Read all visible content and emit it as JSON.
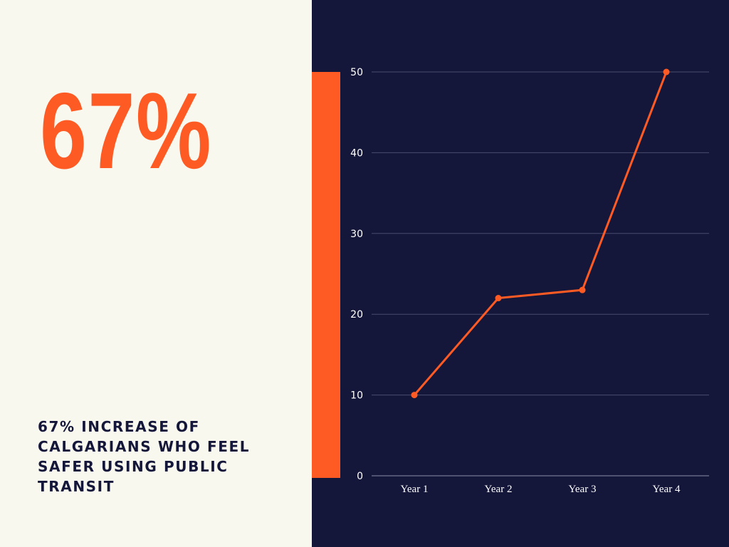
{
  "stat": {
    "value": "67%",
    "caption": "67% INCREASE OF CALGARIANS WHO FEEL SAFER USING PUBLIC TRANSIT"
  },
  "colors": {
    "accent": "#fe5a24",
    "panel_dark": "#15173a",
    "panel_light": "#f9f8ee"
  },
  "chart_data": {
    "type": "line",
    "title": "",
    "xlabel": "",
    "ylabel": "",
    "categories": [
      "Year 1",
      "Year 2",
      "Year 3",
      "Year 4"
    ],
    "series": [
      {
        "values": [
          10,
          22,
          23,
          50
        ],
        "color": "#fe5a24"
      }
    ],
    "ylim": [
      0,
      50
    ],
    "yticks": [
      0,
      10,
      20,
      30,
      40,
      50
    ],
    "grid": true,
    "legend": "none"
  }
}
